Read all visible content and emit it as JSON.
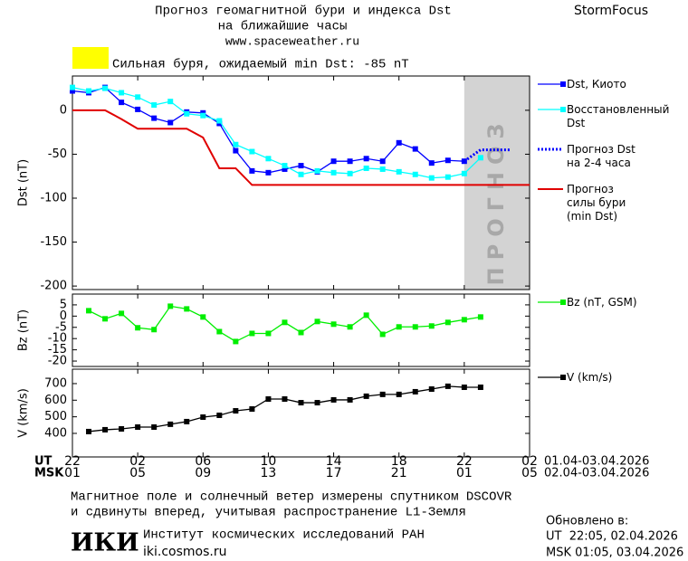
{
  "header": {
    "title": "Прогноз геомагнитной бури и индекса Dst",
    "subtitle": "на ближайшие часы",
    "url": "www.spaceweather.ru",
    "brand": "StormFocus",
    "storm_color": "#ffff00",
    "storm_label": "Сильная буря, ожидаемый min Dst: -85 nT"
  },
  "chart_data": [
    {
      "type": "line",
      "ylabel": "Dst (nT)",
      "xlim": [
        0,
        28
      ],
      "ylim": [
        -204,
        39
      ],
      "yticks": [
        0,
        -50,
        -100,
        -150,
        -200
      ],
      "forecast_span": [
        24,
        28
      ],
      "forecast_label": "ПРОГНОЗ",
      "forecast_color": "#d3d3d3",
      "series": [
        {
          "name": "Dst, Киото",
          "color": "#0000ff",
          "marker": "square",
          "x": [
            0,
            1,
            2,
            3,
            4,
            5,
            6,
            7,
            8,
            9,
            10,
            11,
            12,
            13,
            14,
            15,
            16,
            17,
            18,
            19,
            20,
            21,
            22,
            23,
            24
          ],
          "values": [
            22,
            20,
            26,
            9,
            1,
            -9,
            -14,
            -2,
            -3,
            -15,
            -46,
            -69,
            -71,
            -67,
            -63,
            -70,
            -58,
            -58,
            -55,
            -58,
            -37,
            -44,
            -60,
            -57,
            -58
          ]
        },
        {
          "name": "Восстановленный\nDst",
          "color": "#00ffff",
          "marker": "square",
          "x": [
            0,
            1,
            2,
            3,
            4,
            5,
            6,
            7,
            8,
            9,
            10,
            11,
            12,
            13,
            14,
            15,
            16,
            17,
            18,
            19,
            20,
            21,
            22,
            23,
            24,
            25
          ],
          "values": [
            26,
            22,
            25,
            20,
            15,
            6,
            10,
            -4,
            -6,
            -12,
            -39,
            -47,
            -55,
            -63,
            -73,
            -69,
            -71,
            -72,
            -66,
            -67,
            -70,
            -73,
            -77,
            -76,
            -72,
            -54
          ]
        },
        {
          "name": "Прогноз Dst\nна 2-4 часа",
          "color": "#0000ff",
          "style": "dotted",
          "x": [
            24,
            25,
            26.8
          ],
          "values": [
            -58,
            -45,
            -45
          ]
        },
        {
          "name": "Прогноз\nсилы бури\n(min Dst)",
          "color": "#e00000",
          "x": [
            0,
            2,
            3,
            4,
            7,
            8,
            9,
            10,
            11,
            28
          ],
          "values": [
            0,
            0,
            -10,
            -21,
            -21,
            -31,
            -66,
            -66,
            -85,
            -85
          ]
        }
      ]
    },
    {
      "type": "line",
      "ylabel": "Bz (nT)",
      "xlim": [
        0,
        28
      ],
      "ylim": [
        -22.4,
        9.8
      ],
      "yticks": [
        5,
        0,
        -5,
        -10,
        -15,
        -20
      ],
      "series": [
        {
          "name": "Bz (nT, GSM)",
          "color": "#00ee00",
          "marker": "square",
          "x": [
            1,
            2,
            3,
            4,
            5,
            6,
            7,
            8,
            9,
            10,
            11,
            12,
            13,
            14,
            15,
            16,
            17,
            18,
            19,
            20,
            21,
            22,
            23,
            24,
            25
          ],
          "values": [
            2.4,
            -1.2,
            1.2,
            -5.2,
            -6,
            4.4,
            3.2,
            -0.4,
            -6.9,
            -11.3,
            -7.7,
            -7.7,
            -2.8,
            -7.3,
            -2.4,
            -3.6,
            -4.8,
            0.4,
            -8.1,
            -4.8,
            -4.8,
            -4.4,
            -2.8,
            -1.6,
            -0.4
          ]
        }
      ]
    },
    {
      "type": "line",
      "ylabel": "V (km/s)",
      "xlim": [
        0,
        28
      ],
      "ylim": [
        258,
        787
      ],
      "yticks": [
        400,
        500,
        600,
        700
      ],
      "xlabel": "UT",
      "x2label": "MSK",
      "xrange_label": "01.04-03.04.2026",
      "x2range_label": "02.04-03.04.2026",
      "xticks": [
        {
          "value": 0,
          "label": "22"
        },
        {
          "value": 4,
          "label": "02"
        },
        {
          "value": 8,
          "label": "06"
        },
        {
          "value": 12,
          "label": "10"
        },
        {
          "value": 16,
          "label": "14"
        },
        {
          "value": 20,
          "label": "18"
        },
        {
          "value": 24,
          "label": "22"
        },
        {
          "value": 28,
          "label": "02"
        }
      ],
      "x2ticks": [
        {
          "value": 0,
          "label": "01"
        },
        {
          "value": 4,
          "label": "05"
        },
        {
          "value": 8,
          "label": "09"
        },
        {
          "value": 12,
          "label": "13"
        },
        {
          "value": 16,
          "label": "17"
        },
        {
          "value": 20,
          "label": "21"
        },
        {
          "value": 24,
          "label": "01"
        },
        {
          "value": 28,
          "label": "05"
        }
      ],
      "series": [
        {
          "name": "V (km/s)",
          "color": "#000000",
          "marker": "square",
          "x": [
            1,
            2,
            3,
            4,
            5,
            6,
            7,
            8,
            9,
            10,
            11,
            12,
            13,
            14,
            15,
            16,
            17,
            18,
            19,
            20,
            21,
            22,
            23,
            24,
            25
          ],
          "values": [
            411,
            422,
            427,
            438,
            438,
            455,
            471,
            498,
            509,
            536,
            547,
            607,
            607,
            585,
            585,
            602,
            602,
            624,
            635,
            635,
            651,
            667,
            684,
            678,
            678
          ]
        }
      ]
    }
  ],
  "footer": {
    "note": [
      "Магнитное поле и солнечный ветер измерены спутником DSCOVR",
      "и сдвинуты вперед, учитывая распространение L1-Земля"
    ],
    "updated_title": "Обновлено в:",
    "updated_ut": "UT  22:05, 02.04.2026",
    "updated_msk": "MSK 01:05, 03.04.2026",
    "logo": "ИКИ",
    "institute": "Институт космических исследований РАН",
    "institute_url": "iki.cosmos.ru"
  }
}
